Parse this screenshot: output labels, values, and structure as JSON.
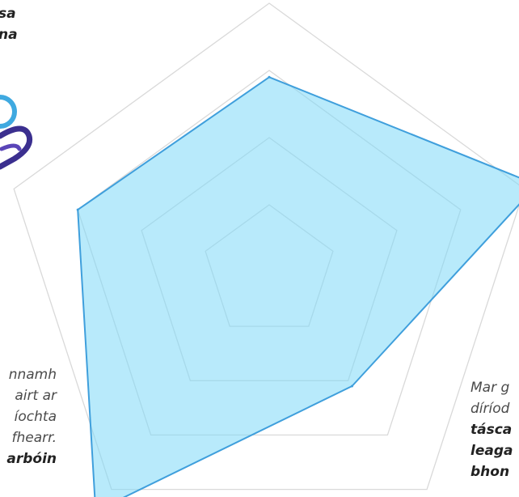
{
  "background_text": {
    "top_left": [
      "sa",
      "na"
    ],
    "left": [
      "nnamh",
      "airt ar",
      "íochta",
      "fhearr.",
      "arbóin"
    ],
    "right_lines": [
      "Mar g",
      "díríod"
    ],
    "right_bold_lines": [
      "tásca",
      "leaga",
      "bhon"
    ]
  },
  "logo": {
    "icon": "hand-holding-circle-logo",
    "colors": [
      "#3fa9e0",
      "#3b2f8f"
    ]
  },
  "chart_data": {
    "type": "radar",
    "title": "",
    "axes": [
      "",
      "",
      "",
      "",
      ""
    ],
    "rmax": 4,
    "grid_levels": 4,
    "grid": true,
    "series": [
      {
        "values": [
          2.9,
          4.2,
          2.1,
          4.4,
          3.0
        ],
        "color": "#7dd8f7",
        "edge": "#3f9fdc"
      }
    ]
  }
}
